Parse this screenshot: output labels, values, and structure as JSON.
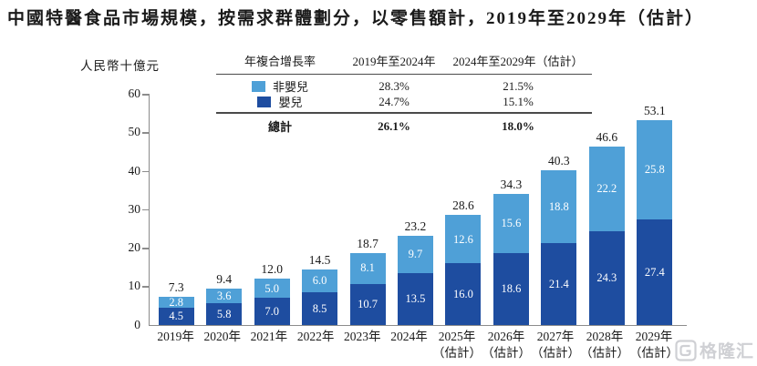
{
  "title": "中國特醫食品市場規模，按需求群體劃分，以零售額計，2019年至2029年（估計）",
  "y_axis_label": "人民幣十億元",
  "cagr_table": {
    "header": [
      "年複合增長率",
      "2019年至2024年",
      "2024年至2029年（估計）"
    ],
    "rows": [
      {
        "label": "非嬰兒",
        "color": "#4FA0D7",
        "v1": "28.3%",
        "v2": "21.5%"
      },
      {
        "label": "嬰兒",
        "color": "#1E4DA0",
        "v1": "24.7%",
        "v2": "15.1%"
      }
    ],
    "total": {
      "label": "總計",
      "v1": "26.1%",
      "v2": "18.0%"
    }
  },
  "chart_data": {
    "type": "bar",
    "stacked": true,
    "title": "中國特醫食品市場規模，按需求群體劃分，以零售額計，2019年至2029年（估計）",
    "ylabel": "人民幣十億元",
    "ylim": [
      0,
      60
    ],
    "yticks": [
      0,
      10,
      20,
      30,
      40,
      50,
      60
    ],
    "grid": false,
    "legend_position": "top-table",
    "categories": [
      {
        "label": "2019年",
        "sublabel": ""
      },
      {
        "label": "2020年",
        "sublabel": ""
      },
      {
        "label": "2021年",
        "sublabel": ""
      },
      {
        "label": "2022年",
        "sublabel": ""
      },
      {
        "label": "2023年",
        "sublabel": ""
      },
      {
        "label": "2024年",
        "sublabel": ""
      },
      {
        "label": "2025年",
        "sublabel": "（估計）"
      },
      {
        "label": "2026年",
        "sublabel": "（估計）"
      },
      {
        "label": "2027年",
        "sublabel": "（估計）"
      },
      {
        "label": "2028年",
        "sublabel": "（估計）"
      },
      {
        "label": "2029年",
        "sublabel": "（估計）"
      }
    ],
    "series": [
      {
        "name": "嬰兒",
        "color": "#1E4DA0",
        "values": [
          4.5,
          5.8,
          7.0,
          8.5,
          10.7,
          13.5,
          16.0,
          18.6,
          21.4,
          24.3,
          27.4
        ]
      },
      {
        "name": "非嬰兒",
        "color": "#4FA0D7",
        "values": [
          2.8,
          3.6,
          5.0,
          6.0,
          8.1,
          9.7,
          12.6,
          15.6,
          18.8,
          22.2,
          25.8
        ]
      }
    ],
    "totals": [
      7.3,
      9.4,
      12.0,
      14.5,
      18.7,
      23.2,
      28.6,
      34.3,
      40.3,
      46.6,
      53.1
    ]
  },
  "watermark": {
    "brand": "格隆汇"
  },
  "colors": {
    "non_infant": "#4FA0D7",
    "infant": "#1E4DA0",
    "axis": "#8c8c8c",
    "table_rule": "#4a4a4a",
    "watermark": "#cfd0d4"
  }
}
